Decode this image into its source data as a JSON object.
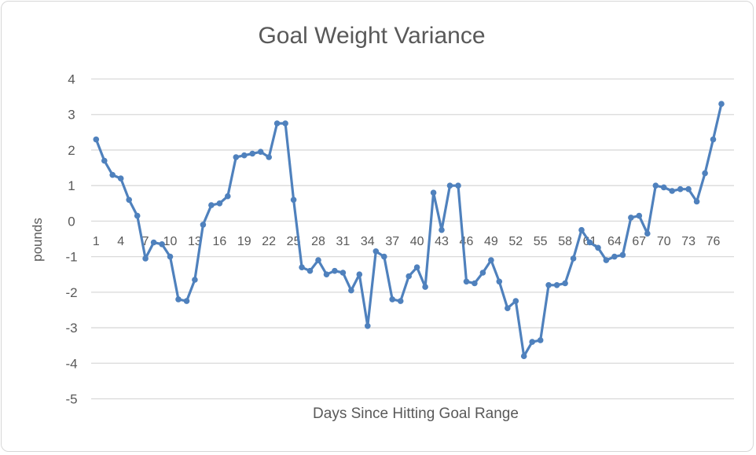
{
  "frame": {
    "background": "#ffffff",
    "border_color": "#d7d7d7"
  },
  "chart_data": {
    "type": "line",
    "title": "Goal Weight Variance",
    "xlabel": "Days Since Hitting Goal Range",
    "ylabel": "pounds",
    "x_start": 1,
    "values": [
      2.3,
      1.7,
      1.3,
      1.2,
      0.6,
      0.15,
      -1.05,
      -0.6,
      -0.65,
      -1.0,
      -2.2,
      -2.25,
      -1.65,
      -0.1,
      0.45,
      0.5,
      0.7,
      1.8,
      1.85,
      1.9,
      1.95,
      1.8,
      2.75,
      2.75,
      0.6,
      -1.3,
      -1.4,
      -1.1,
      -1.5,
      -1.4,
      -1.45,
      -1.95,
      -1.5,
      -2.95,
      -0.85,
      -1.0,
      -2.2,
      -2.25,
      -1.55,
      -1.3,
      -1.85,
      0.8,
      -0.25,
      1.0,
      1.0,
      -1.7,
      -1.75,
      -1.45,
      -1.1,
      -1.7,
      -2.45,
      -2.25,
      -3.8,
      -3.4,
      -3.35,
      -1.8,
      -1.8,
      -1.75,
      -1.05,
      -0.25,
      -0.6,
      -0.75,
      -1.1,
      -1.0,
      -0.95,
      0.1,
      0.15,
      -0.35,
      1.0,
      0.95,
      0.85,
      0.9,
      0.9,
      0.55,
      1.35,
      2.3,
      3.3
    ],
    "x_tick_step": 3,
    "x_tick_labels": [
      "1",
      "4",
      "7",
      "10",
      "13",
      "16",
      "19",
      "22",
      "25",
      "28",
      "31",
      "34",
      "37",
      "40",
      "43",
      "46",
      "49",
      "52",
      "55",
      "58",
      "61",
      "64",
      "67",
      "70",
      "73",
      "76"
    ],
    "y_ticks": [
      4,
      3,
      2,
      1,
      0,
      -1,
      -2,
      -3,
      -4,
      -5
    ],
    "ylim": [
      -5,
      4
    ],
    "grid": true,
    "legend": "none",
    "series_color": "#4F81BD",
    "gridline_color": "#D9D9D9",
    "text_color": "#595959",
    "marker": "circle"
  }
}
